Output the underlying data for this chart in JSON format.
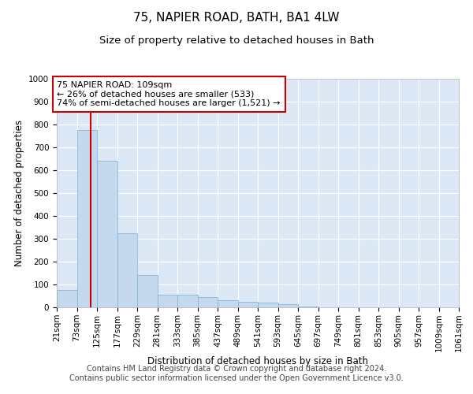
{
  "title": "75, NAPIER ROAD, BATH, BA1 4LW",
  "subtitle": "Size of property relative to detached houses in Bath",
  "xlabel": "Distribution of detached houses by size in Bath",
  "ylabel": "Number of detached properties",
  "bin_labels": [
    "21sqm",
    "73sqm",
    "125sqm",
    "177sqm",
    "229sqm",
    "281sqm",
    "333sqm",
    "385sqm",
    "437sqm",
    "489sqm",
    "541sqm",
    "593sqm",
    "645sqm",
    "697sqm",
    "749sqm",
    "801sqm",
    "853sqm",
    "905sqm",
    "957sqm",
    "1009sqm",
    "1061sqm"
  ],
  "bin_edges": [
    21,
    73,
    125,
    177,
    229,
    281,
    333,
    385,
    437,
    489,
    541,
    593,
    645,
    697,
    749,
    801,
    853,
    905,
    957,
    1009,
    1061
  ],
  "bar_values": [
    75,
    775,
    640,
    325,
    140,
    55,
    55,
    45,
    30,
    25,
    20,
    15,
    5,
    0,
    0,
    0,
    0,
    0,
    0,
    0
  ],
  "bar_color": "#c5d9ee",
  "bar_edge_color": "#7bafd4",
  "property_size": 109,
  "vline_color": "#cc0000",
  "annotation_text": "75 NAPIER ROAD: 109sqm\n← 26% of detached houses are smaller (533)\n74% of semi-detached houses are larger (1,521) →",
  "annotation_box_color": "#ffffff",
  "annotation_box_edge": "#cc0000",
  "ylim": [
    0,
    1000
  ],
  "yticks": [
    0,
    100,
    200,
    300,
    400,
    500,
    600,
    700,
    800,
    900,
    1000
  ],
  "background_color": "#dce8f5",
  "footer_line1": "Contains HM Land Registry data © Crown copyright and database right 2024.",
  "footer_line2": "Contains public sector information licensed under the Open Government Licence v3.0.",
  "title_fontsize": 11,
  "subtitle_fontsize": 9.5,
  "axis_label_fontsize": 8.5,
  "tick_fontsize": 7.5,
  "annotation_fontsize": 8,
  "footer_fontsize": 7
}
